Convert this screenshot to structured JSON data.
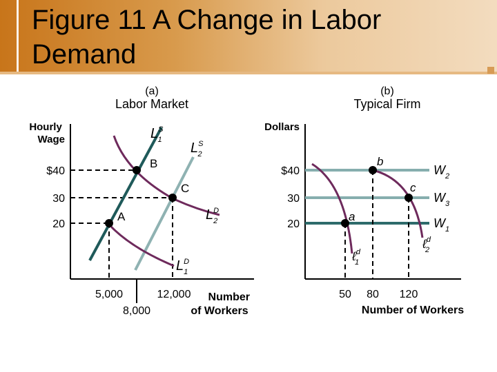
{
  "slide": {
    "title": "Figure 11  A Change in Labor Demand"
  },
  "colors": {
    "banner_orange": "#c8751a",
    "banner_light": "#f3dcbf",
    "supply_dark": "#1f5a5a",
    "supply_light": "#8fb2b2",
    "demand_purple": "#6e2a5c",
    "wage_line_teal": "#2e6b6b",
    "wage_line_light": "#86aeae",
    "dashes": "#000000"
  },
  "chart_data": [
    {
      "type": "line",
      "panel_letter": "(a)",
      "title": "Labor Market",
      "ylabel": "Hourly Wage",
      "xlabel": "Number of Workers",
      "x_ticks": [
        "5,000",
        "8,000",
        "12,000"
      ],
      "x_tick_values": [
        5000,
        8000,
        12000
      ],
      "y_ticks": [
        "$40",
        "30",
        "20"
      ],
      "y_tick_values": [
        40,
        30,
        20
      ],
      "curve_labels": {
        "s1": {
          "main": "L",
          "sup": "S",
          "sub": "1"
        },
        "s2": {
          "main": "L",
          "sup": "S",
          "sub": "2"
        },
        "d1": {
          "main": "L",
          "sup": "D",
          "sub": "1"
        },
        "d2": {
          "main": "L",
          "sup": "D",
          "sub": "2"
        }
      },
      "series": [
        {
          "id": "s1",
          "type": "supply"
        },
        {
          "id": "s2",
          "type": "supply"
        },
        {
          "id": "d1",
          "type": "demand"
        },
        {
          "id": "d2",
          "type": "demand"
        }
      ],
      "points": [
        {
          "label": "A",
          "x": 5000,
          "y": 20
        },
        {
          "label": "B",
          "x": 8000,
          "y": 40
        },
        {
          "label": "C",
          "x": 12000,
          "y": 30
        }
      ]
    },
    {
      "type": "line",
      "panel_letter": "(b)",
      "title": "Typical Firm",
      "ylabel": "Dollars",
      "xlabel": "Number of Workers",
      "x_ticks": [
        "50",
        "80",
        "120"
      ],
      "x_tick_values": [
        50,
        80,
        120
      ],
      "y_ticks": [
        "$40",
        "30",
        "20"
      ],
      "y_tick_values": [
        40,
        30,
        20
      ],
      "wage_lines": [
        {
          "id": "w2",
          "main": "W",
          "sub": "2",
          "y": 40
        },
        {
          "id": "w3",
          "main": "W",
          "sub": "3",
          "y": 30
        },
        {
          "id": "w1",
          "main": "W",
          "sub": "1",
          "y": 20
        }
      ],
      "curve_labels": {
        "d1": {
          "main": "ℓ",
          "sup": "d",
          "sub": "1"
        },
        "d2": {
          "main": "ℓ",
          "sup": "d",
          "sub": "2"
        }
      },
      "points": [
        {
          "label": "a",
          "x": 50,
          "y": 20
        },
        {
          "label": "b",
          "x": 80,
          "y": 40
        },
        {
          "label": "c",
          "x": 120,
          "y": 30
        }
      ]
    }
  ]
}
